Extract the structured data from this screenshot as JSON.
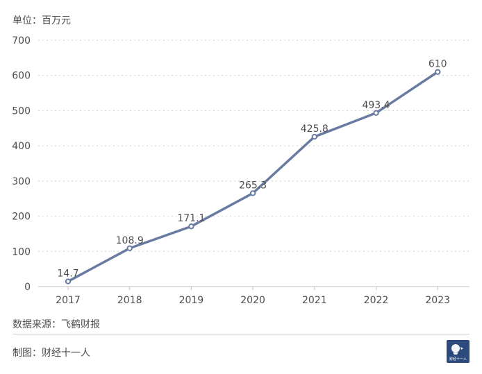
{
  "unit_label": "单位：百万元",
  "source_label": "数据来源：飞鹤财报",
  "credit_label": "制图：财经十一人",
  "logo": {
    "icon": "brand-logo-icon",
    "text": "财经十一人"
  },
  "colors": {
    "line": "#6a7ba2",
    "marker_stroke": "#6a7ba2",
    "marker_fill": "#ffffff",
    "grid": "#d6d6d6",
    "axis": "#bfbfbf",
    "text": "#4d4d4d",
    "logo_bg": "#2d4a7c"
  },
  "chart_data": {
    "type": "line",
    "title": "",
    "xlabel": "",
    "ylabel": "",
    "categories": [
      "2017",
      "2018",
      "2019",
      "2020",
      "2021",
      "2022",
      "2023"
    ],
    "series": [
      {
        "values": [
          14.7,
          108.9,
          171.1,
          265.3,
          425.8,
          493.4,
          610
        ],
        "labels": [
          "14.7",
          "108.9",
          "171.1",
          "265.3",
          "425.8",
          "493.4",
          "610"
        ]
      }
    ],
    "ylim": [
      0,
      700
    ],
    "yticks": [
      0,
      100,
      200,
      300,
      400,
      500,
      600,
      700
    ],
    "grid": true,
    "grid_style": "dotted",
    "legend": "none"
  }
}
